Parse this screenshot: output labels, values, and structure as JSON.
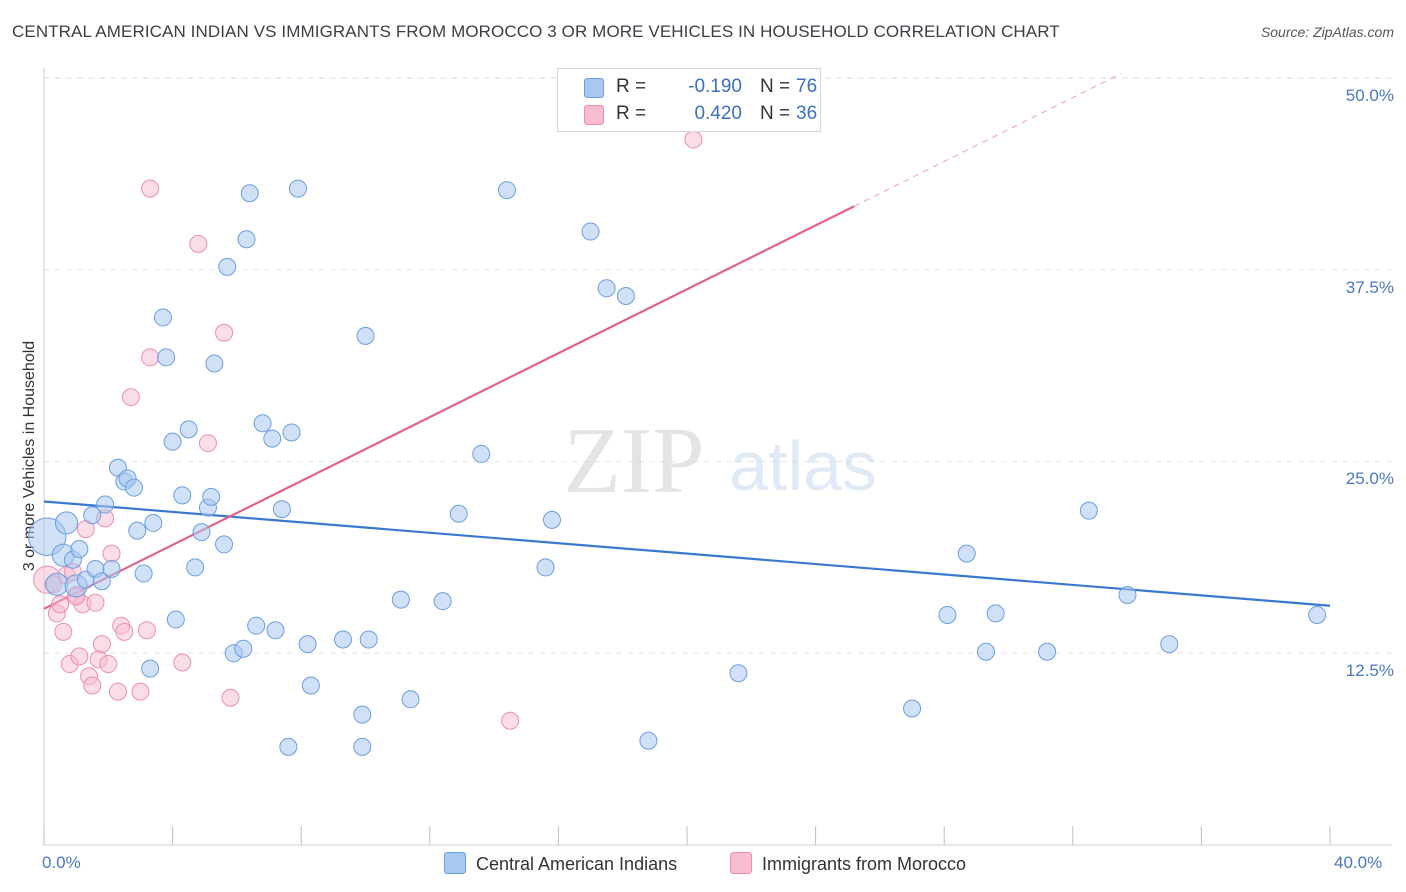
{
  "title": "CENTRAL AMERICAN INDIAN VS IMMIGRANTS FROM MOROCCO 3 OR MORE VEHICLES IN HOUSEHOLD CORRELATION CHART",
  "source": "Source: ZipAtlas.com",
  "watermark": {
    "zip": "ZIP",
    "atlas": "atlas"
  },
  "legend": {
    "series1": {
      "r_label": "R =",
      "r_value": "-0.190",
      "n_label": "N =",
      "n_value": "76"
    },
    "series2": {
      "r_label": "R =",
      "r_value": "0.420",
      "n_label": "N =",
      "n_value": "36"
    }
  },
  "colors": {
    "blue_fill": "#a9c8f0",
    "blue_stroke": "#6d9ee0",
    "blue_line": "#3a78d0",
    "pink_fill": "#f7bccf",
    "pink_stroke": "#ec8fae",
    "pink_line": "#e0638f",
    "grid": "#e6e6e6",
    "tick_text": "#4a78c2"
  },
  "chart_data": {
    "type": "scatter",
    "title": "CENTRAL AMERICAN INDIAN VS IMMIGRANTS FROM MOROCCO 3 OR MORE VEHICLES IN HOUSEHOLD CORRELATION CHART",
    "xlabel": "",
    "ylabel": "3 or more Vehicles in Household",
    "xlim": [
      0,
      40
    ],
    "ylim": [
      0,
      52
    ],
    "x_tick_labels": [
      "0.0%",
      "40.0%"
    ],
    "y_ticks": [
      12.5,
      25.0,
      37.5,
      50.0
    ],
    "y_tick_labels": [
      "12.5%",
      "25.0%",
      "37.5%",
      "50.0%"
    ],
    "legend_position": "bottom-center",
    "series": [
      {
        "name": "Central American Indians",
        "color": "#a9c8f0",
        "R": -0.19,
        "N": 76,
        "trend": {
          "x0": 0.0,
          "y0": 22.4,
          "x1": 40.0,
          "y1": 15.6,
          "dashed_from": null
        },
        "points": [
          [
            0.1,
            20.1,
            2.2
          ],
          [
            0.4,
            17.0,
            1.3
          ],
          [
            0.6,
            18.9,
            1.3
          ],
          [
            0.7,
            21.0,
            1.3
          ],
          [
            0.9,
            18.6,
            1.0
          ],
          [
            1.0,
            16.9,
            1.3
          ],
          [
            1.1,
            19.3,
            1.0
          ],
          [
            1.3,
            17.3,
            1.0
          ],
          [
            1.5,
            21.5,
            1.0
          ],
          [
            1.6,
            18.0,
            1.0
          ],
          [
            1.8,
            17.2,
            1.0
          ],
          [
            1.9,
            22.2,
            1.0
          ],
          [
            2.1,
            18.0,
            1.0
          ],
          [
            2.3,
            24.6,
            1.0
          ],
          [
            2.5,
            23.7,
            1.0
          ],
          [
            2.6,
            23.9,
            1.0
          ],
          [
            2.8,
            23.3,
            1.0
          ],
          [
            2.9,
            20.5,
            1.0
          ],
          [
            3.1,
            17.7,
            1.0
          ],
          [
            3.3,
            11.5,
            1.0
          ],
          [
            3.4,
            21.0,
            1.0
          ],
          [
            3.7,
            34.4,
            1.0
          ],
          [
            3.8,
            31.8,
            1.0
          ],
          [
            4.0,
            26.3,
            1.0
          ],
          [
            4.1,
            14.7,
            1.0
          ],
          [
            4.3,
            22.8,
            1.0
          ],
          [
            4.5,
            27.1,
            1.0
          ],
          [
            4.7,
            18.1,
            1.0
          ],
          [
            4.9,
            20.4,
            1.0
          ],
          [
            5.1,
            22.0,
            1.0
          ],
          [
            5.2,
            22.7,
            1.0
          ],
          [
            5.3,
            31.4,
            1.0
          ],
          [
            5.6,
            19.6,
            1.0
          ],
          [
            5.7,
            37.7,
            1.0
          ],
          [
            5.9,
            12.5,
            1.0
          ],
          [
            6.2,
            12.8,
            1.0
          ],
          [
            6.3,
            39.5,
            1.0
          ],
          [
            6.4,
            42.5,
            1.0
          ],
          [
            6.6,
            14.3,
            1.0
          ],
          [
            6.8,
            27.5,
            1.0
          ],
          [
            7.1,
            26.5,
            1.0
          ],
          [
            7.2,
            14.0,
            1.0
          ],
          [
            7.6,
            6.4,
            1.0
          ],
          [
            7.7,
            26.9,
            1.0
          ],
          [
            7.4,
            21.9,
            1.0
          ],
          [
            7.9,
            42.8,
            1.0
          ],
          [
            8.2,
            13.1,
            1.0
          ],
          [
            8.3,
            10.4,
            1.0
          ],
          [
            9.3,
            13.4,
            1.0
          ],
          [
            9.9,
            6.4,
            1.0
          ],
          [
            9.9,
            8.5,
            1.0
          ],
          [
            10.0,
            33.2,
            1.0
          ],
          [
            11.1,
            16.0,
            1.0
          ],
          [
            11.4,
            9.5,
            1.0
          ],
          [
            12.4,
            15.9,
            1.0
          ],
          [
            12.9,
            21.6,
            1.0
          ],
          [
            13.6,
            25.5,
            1.0
          ],
          [
            14.4,
            42.7,
            1.0
          ],
          [
            15.6,
            18.1,
            1.0
          ],
          [
            15.8,
            21.2,
            1.0
          ],
          [
            17.0,
            40.0,
            1.0
          ],
          [
            17.5,
            36.3,
            1.0
          ],
          [
            18.1,
            35.8,
            1.0
          ],
          [
            18.8,
            6.8,
            1.0
          ],
          [
            21.6,
            11.2,
            1.0
          ],
          [
            27.0,
            8.9,
            1.0
          ],
          [
            28.1,
            15.0,
            1.0
          ],
          [
            28.7,
            19.0,
            1.0
          ],
          [
            29.3,
            12.6,
            1.0
          ],
          [
            29.6,
            15.1,
            1.0
          ],
          [
            31.2,
            12.6,
            1.0
          ],
          [
            32.5,
            21.8,
            1.0
          ],
          [
            33.7,
            16.3,
            1.0
          ],
          [
            35.0,
            13.1,
            1.0
          ],
          [
            39.6,
            15.0,
            1.0
          ],
          [
            10.1,
            13.4,
            1.0
          ]
        ]
      },
      {
        "name": "Immigrants from Morocco",
        "color": "#f7bccf",
        "R": 0.42,
        "N": 36,
        "trend": {
          "x0": 0.0,
          "y0": 15.4,
          "x1": 33.5,
          "y1": 50.3,
          "dashed_from": 25.2
        },
        "points": [
          [
            0.1,
            17.3,
            1.6
          ],
          [
            0.3,
            17.0,
            1.0
          ],
          [
            0.4,
            15.1,
            1.0
          ],
          [
            0.5,
            15.7,
            1.0
          ],
          [
            0.6,
            13.9,
            1.0
          ],
          [
            0.7,
            17.6,
            1.0
          ],
          [
            0.8,
            11.8,
            1.0
          ],
          [
            0.9,
            17.8,
            1.0
          ],
          [
            1.0,
            16.3,
            1.0
          ],
          [
            1.1,
            12.3,
            1.0
          ],
          [
            1.2,
            15.7,
            1.0
          ],
          [
            1.3,
            20.6,
            1.0
          ],
          [
            1.4,
            11.0,
            1.0
          ],
          [
            1.5,
            10.4,
            1.0
          ],
          [
            1.6,
            15.8,
            1.0
          ],
          [
            1.7,
            12.1,
            1.0
          ],
          [
            1.8,
            13.1,
            1.0
          ],
          [
            1.9,
            21.3,
            1.0
          ],
          [
            2.0,
            11.8,
            1.0
          ],
          [
            2.1,
            19.0,
            1.0
          ],
          [
            2.3,
            10.0,
            1.0
          ],
          [
            2.4,
            14.3,
            1.0
          ],
          [
            2.5,
            13.9,
            1.0
          ],
          [
            2.7,
            29.2,
            1.0
          ],
          [
            3.0,
            10.0,
            1.0
          ],
          [
            3.2,
            14.0,
            1.0
          ],
          [
            3.3,
            31.8,
            1.0
          ],
          [
            3.3,
            42.8,
            1.0
          ],
          [
            4.3,
            11.9,
            1.0
          ],
          [
            4.8,
            39.2,
            1.0
          ],
          [
            5.1,
            26.2,
            1.0
          ],
          [
            5.6,
            33.4,
            1.0
          ],
          [
            5.8,
            9.6,
            1.0
          ],
          [
            14.5,
            8.1,
            1.0
          ],
          [
            20.2,
            46.0,
            1.0
          ],
          [
            1.0,
            16.2,
            1.0
          ]
        ]
      }
    ]
  }
}
